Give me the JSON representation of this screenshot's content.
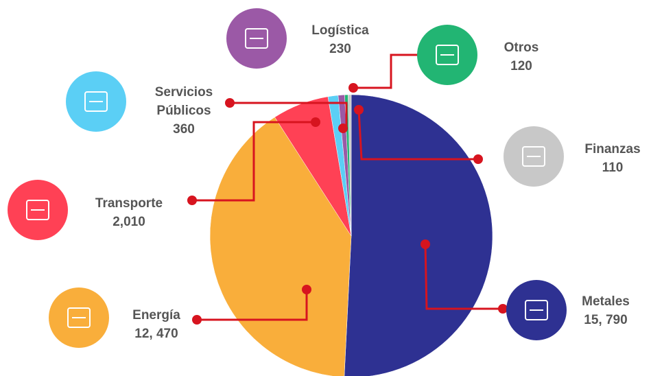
{
  "chart_data": {
    "type": "pie",
    "categories": [
      "Metales",
      "Energía",
      "Transporte",
      "Servicios Públicos",
      "Logística",
      "Otros",
      "Finanzas"
    ],
    "values": [
      15790,
      12470,
      2010,
      360,
      230,
      120,
      110
    ],
    "value_labels": [
      "15, 790",
      "12, 470",
      "2,010",
      "360",
      "230",
      "120",
      "110"
    ],
    "colors": [
      "#2e3192",
      "#f9ae3b",
      "#ff4155",
      "#5bcff5",
      "#9b59a6",
      "#22b573",
      "#c8c8c8"
    ]
  }
}
